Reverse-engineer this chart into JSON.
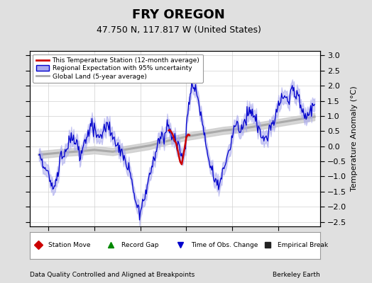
{
  "title": "FRY OREGON",
  "subtitle": "47.750 N, 117.817 W (United States)",
  "ylabel": "Temperature Anomaly (°C)",
  "footer_left": "Data Quality Controlled and Aligned at Breakpoints",
  "footer_right": "Berkeley Earth",
  "xlim": [
    1973.0,
    2004.5
  ],
  "ylim": [
    -2.65,
    3.15
  ],
  "yticks": [
    -2.5,
    -2,
    -1.5,
    -1,
    -0.5,
    0,
    0.5,
    1,
    1.5,
    2,
    2.5,
    3
  ],
  "xticks": [
    1975,
    1980,
    1985,
    1990,
    1995,
    2000
  ],
  "background_color": "#e0e0e0",
  "plot_bg_color": "#ffffff",
  "title_fontsize": 13,
  "subtitle_fontsize": 9,
  "axis_fontsize": 8,
  "tick_fontsize": 8,
  "blue_line_color": "#0000cc",
  "blue_shade_color": "#aaaaee",
  "red_line_color": "#cc0000",
  "gray_line_color": "#aaaaaa",
  "gray_shade_color": "#cccccc"
}
